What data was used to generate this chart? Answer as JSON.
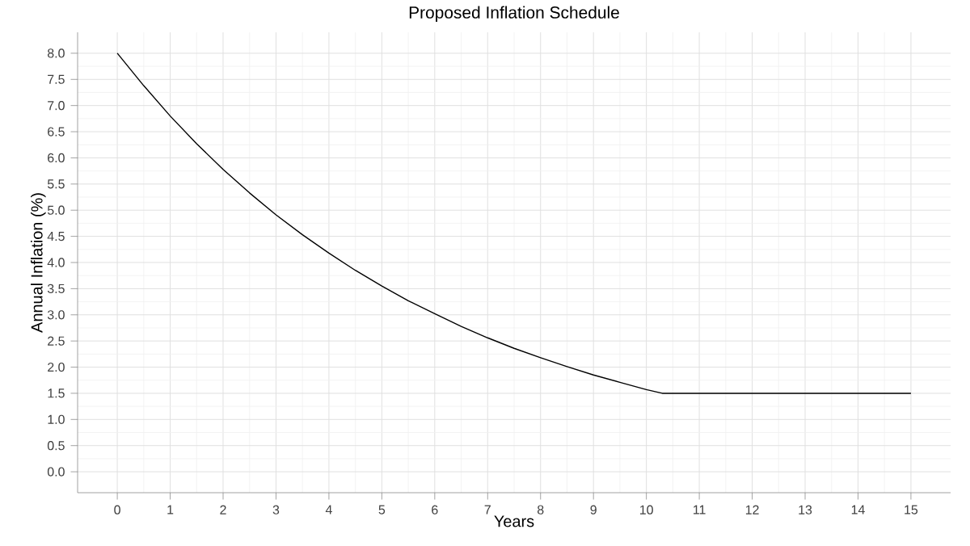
{
  "chart_data": {
    "type": "line",
    "title": "Proposed Inflation Schedule",
    "xlabel": "Years",
    "ylabel": "Annual Inflation (%)",
    "x": [
      0,
      0.5,
      1,
      1.5,
      2,
      2.5,
      3,
      3.5,
      4,
      4.5,
      5,
      5.5,
      6,
      6.5,
      7,
      7.5,
      8,
      8.5,
      9,
      9.5,
      10,
      10.3,
      11,
      12,
      13,
      14,
      15
    ],
    "series": [
      {
        "color": "#000000",
        "values": [
          8.0,
          7.38,
          6.8,
          6.27,
          5.78,
          5.33,
          4.91,
          4.53,
          4.18,
          3.85,
          3.55,
          3.27,
          3.02,
          2.78,
          2.56,
          2.36,
          2.18,
          2.01,
          1.85,
          1.71,
          1.57,
          1.5,
          1.5,
          1.5,
          1.5,
          1.5,
          1.5
        ]
      }
    ],
    "xlim": [
      -0.75,
      15.75
    ],
    "ylim": [
      -0.4,
      8.4
    ],
    "xticks": [
      0,
      1,
      2,
      3,
      4,
      5,
      6,
      7,
      8,
      9,
      10,
      11,
      12,
      13,
      14,
      15
    ],
    "yticks": [
      {
        "value": 0,
        "label": "0.0"
      },
      {
        "value": 0.5,
        "label": "0.5"
      },
      {
        "value": 1,
        "label": "1.0"
      },
      {
        "value": 1.5,
        "label": "1.5"
      },
      {
        "value": 2,
        "label": "2.0"
      },
      {
        "value": 2.5,
        "label": "2.5"
      },
      {
        "value": 3,
        "label": "3.0"
      },
      {
        "value": 3.5,
        "label": "3.5"
      },
      {
        "value": 4,
        "label": "4.0"
      },
      {
        "value": 4.5,
        "label": "4.5"
      },
      {
        "value": 5,
        "label": "5.0"
      },
      {
        "value": 5.5,
        "label": "5.5"
      },
      {
        "value": 6,
        "label": "6.0"
      },
      {
        "value": 6.5,
        "label": "6.5"
      },
      {
        "value": 7,
        "label": "7.0"
      },
      {
        "value": 7.5,
        "label": "7.5"
      },
      {
        "value": 8,
        "label": "8.0"
      }
    ],
    "grid": true,
    "marker": "none",
    "line_style": "solid"
  }
}
